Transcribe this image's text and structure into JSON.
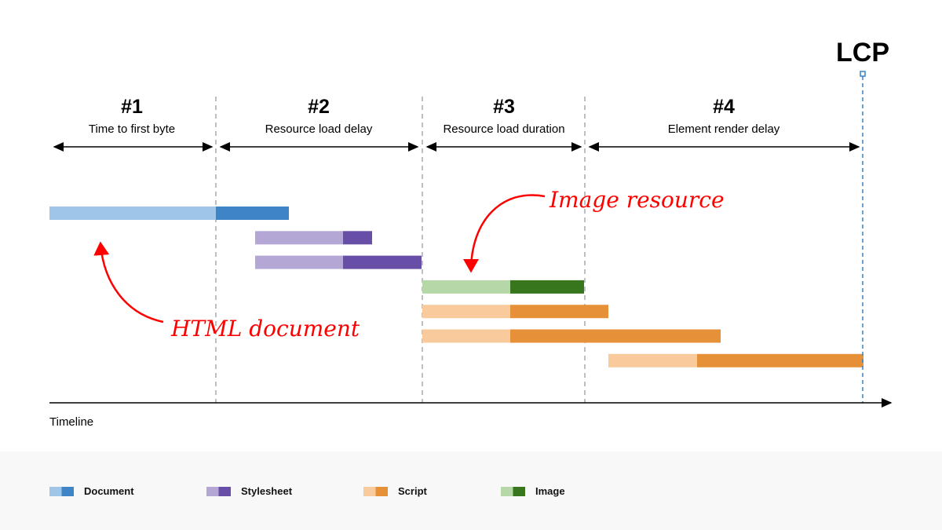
{
  "phases": [
    {
      "number": "#1",
      "label": "Time to first byte"
    },
    {
      "number": "#2",
      "label": "Resource load delay"
    },
    {
      "number": "#3",
      "label": "Resource load duration"
    },
    {
      "number": "#4",
      "label": "Element render delay"
    }
  ],
  "marker": {
    "label": "LCP",
    "color": "#3a84c6"
  },
  "axis": {
    "label": "Timeline"
  },
  "annotations": {
    "image": "Image resource",
    "html": "HTML document",
    "color": "#ff0000"
  },
  "legend": [
    {
      "label": "Document",
      "light": "#9fc5e8",
      "dark": "#3d85c6"
    },
    {
      "label": "Stylesheet",
      "light": "#b4a7d6",
      "dark": "#674ea7"
    },
    {
      "label": "Script",
      "light": "#f9cb9c",
      "dark": "#e69138"
    },
    {
      "label": "Image",
      "light": "#b6d7a8",
      "dark": "#38761d"
    }
  ]
}
